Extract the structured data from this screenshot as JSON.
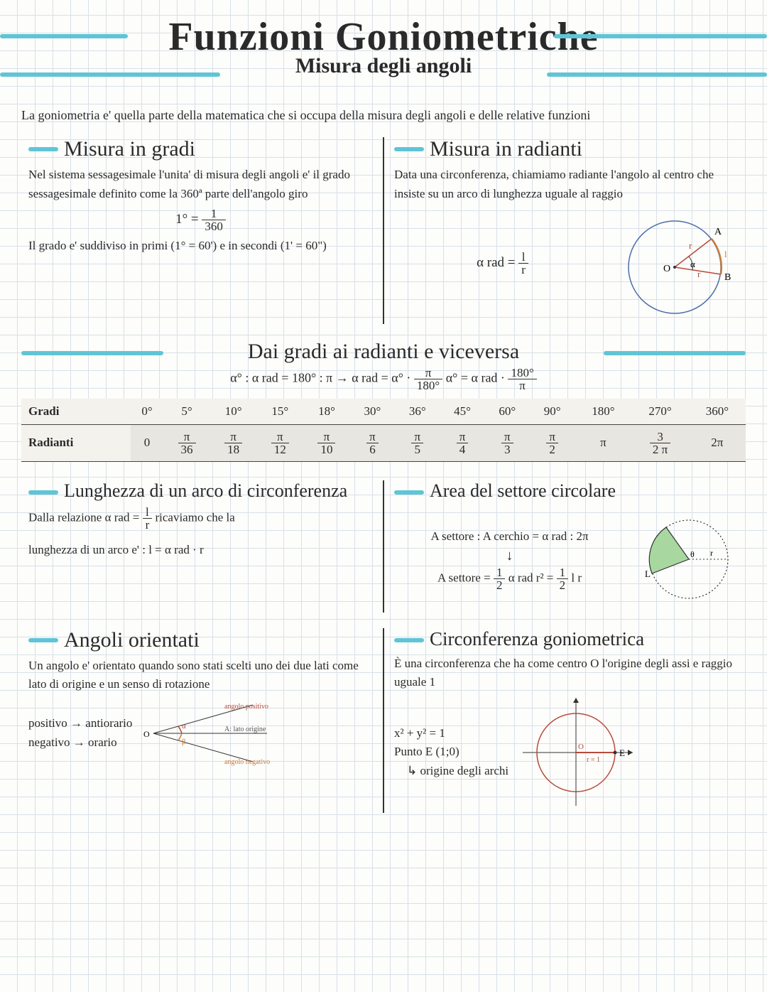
{
  "title": "Funzioni Goniometriche",
  "subtitle": "Misura degli angoli",
  "intro": "La goniometria e' quella parte della matematica che si occupa della misura degli angoli e delle relative funzioni",
  "gradi": {
    "h": "Misura in gradi",
    "p1": "Nel sistema sessagesimale l'unita' di misura degli angoli e' il grado sessagesimale definito come la 360ª parte dell'angolo giro",
    "f_lhs": "1° =",
    "f_num": "1",
    "f_den": "360",
    "p2": "Il grado e' suddiviso in primi (1° = 60') e in secondi (1' = 60\")"
  },
  "rad": {
    "h": "Misura in radianti",
    "p1": "Data una circonferenza, chiamiamo radiante l'angolo al centro che insiste su un arco di lunghezza uguale al raggio",
    "f_lhs": "α rad =",
    "f_num": "l",
    "f_den": "r",
    "labels": {
      "A": "A",
      "B": "B",
      "O": "O",
      "r": "r",
      "l": "l",
      "a": "α"
    }
  },
  "conv": {
    "h": "Dai gradi ai radianti e viceversa",
    "formula": "α° : α rad = 180° : π   →   α rad = α° · ",
    "f1n": "π",
    "f1d": "180°",
    "mid": "      α° = α rad · ",
    "f2n": "180°",
    "f2d": "π",
    "headers": [
      "Gradi",
      "0°",
      "5°",
      "10°",
      "15°",
      "18°",
      "30°",
      "36°",
      "45°",
      "60°",
      "90°",
      "180°",
      "270°",
      "360°"
    ],
    "radrow": [
      "Radianti",
      "0",
      "π/36",
      "π/18",
      "π/12",
      "π/10",
      "π/6",
      "π/5",
      "π/4",
      "π/3",
      "π/2",
      "π",
      "3/2 π",
      "2π"
    ]
  },
  "arc": {
    "h": "Lunghezza di un arco di circonferenza",
    "p1": "Dalla relazione  α rad = ",
    "f1n": "l",
    "f1d": "r",
    "p1b": "  ricaviamo che la",
    "p2": "lunghezza di un arco e' :  l = α rad · r"
  },
  "sector": {
    "h": "Area del settore circolare",
    "p1": "A settore : A cerchio = α rad : 2π",
    "arrow": "↓",
    "p2": "A settore = ",
    "f1n": "1",
    "f1d": "2",
    "mid1": " α rad r² = ",
    "f2n": "1",
    "f2d": "2",
    "mid2": " l r"
  },
  "orient": {
    "h": "Angoli orientati",
    "p1": "Un angolo e' orientato quando sono stati scelti uno dei due lati come lato di origine e un senso di rotazione",
    "pos": "positivo → antiorario",
    "neg": "negativo → orario",
    "lbl_pos": "angolo positivo",
    "lbl_or": "A: lato origine",
    "lbl_neg": "angolo negativo",
    "O": "O"
  },
  "gon": {
    "h": "Circonferenza goniometrica",
    "p1": "È una circonferenza che ha come centro O l'origine degli assi e raggio uguale 1",
    "eq": "x² + y² = 1",
    "pE": "Punto E (1;0)",
    "pE2": "↳ origine degli archi",
    "O": "O",
    "E": "E",
    "r": "r = 1"
  },
  "colors": {
    "accent": "#5fc5d6",
    "ink": "#2a2a2a",
    "red": "#b84a3a",
    "orange": "#c77b3a",
    "blue": "#4a6fa8",
    "green": "#a8d8a0"
  }
}
